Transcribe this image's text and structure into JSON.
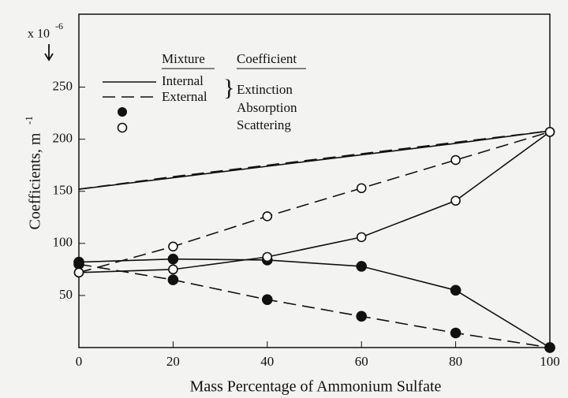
{
  "chart_data": {
    "type": "line",
    "x_label": "Mass Percentage of Ammonium Sulfate",
    "y_label": "Coefficients,  m",
    "y_label_exponent": "-1",
    "y_scale_label": "x 10",
    "y_scale_exponent": "-6",
    "x": [
      0,
      20,
      40,
      60,
      80,
      100
    ],
    "xlim": [
      0,
      100
    ],
    "xticks": [
      0,
      20,
      40,
      60,
      80,
      100
    ],
    "ylim": [
      0,
      320
    ],
    "yticks": [
      50,
      100,
      150,
      200,
      250
    ],
    "legend": {
      "headers": [
        "Mixture",
        "Coefficient"
      ],
      "mixtures": [
        "Internal",
        "External"
      ],
      "coefficients": [
        "Extinction",
        "Absorption",
        "Scattering"
      ]
    },
    "series": [
      {
        "color": "#111111",
        "dashed": false,
        "marker": "none",
        "values": [
          152,
          163,
          174,
          185,
          196,
          208
        ]
      },
      {
        "color": "#111111",
        "dashed": true,
        "marker": "none",
        "values": [
          152,
          164,
          175,
          186,
          197,
          208
        ]
      },
      {
        "color": "#111111",
        "dashed": false,
        "marker": "filled",
        "values": [
          82,
          85,
          84,
          78,
          55,
          0
        ]
      },
      {
        "color": "#111111",
        "dashed": true,
        "marker": "filled",
        "values": [
          80,
          65,
          46,
          30,
          14,
          0
        ]
      },
      {
        "color": "#111111",
        "dashed": false,
        "marker": "open",
        "values": [
          72,
          75,
          87,
          106,
          141,
          207
        ]
      },
      {
        "color": "#111111",
        "dashed": true,
        "marker": "open",
        "values": [
          72,
          97,
          126,
          153,
          180,
          207
        ]
      }
    ]
  }
}
